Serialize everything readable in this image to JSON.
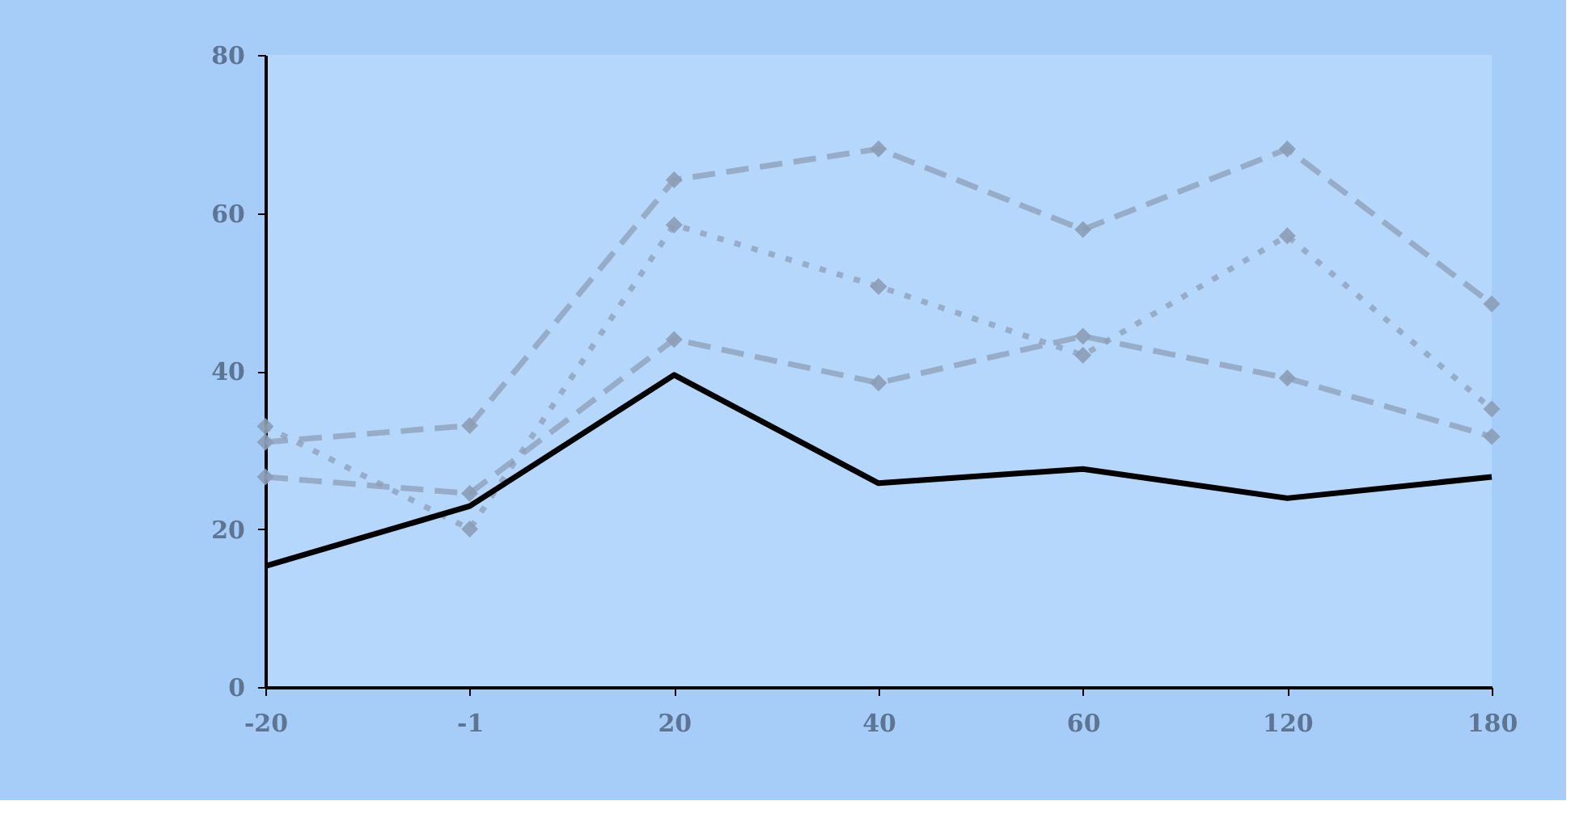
{
  "chart_data": {
    "type": "line",
    "categories": [
      "-20",
      "-1",
      "20",
      "40",
      "60",
      "120",
      "180"
    ],
    "ylim": [
      0,
      80
    ],
    "yticks": [
      0,
      20,
      40,
      60,
      80
    ],
    "grid": false,
    "series": [
      {
        "color": "#8c9db5",
        "line_style": "dashed",
        "marker": "diamond",
        "values": [
          31,
          33.1,
          64.2,
          68.1,
          57.9,
          68.1,
          48.5
        ]
      },
      {
        "color": "#8c9db5",
        "line_style": "dotted",
        "marker": "diamond",
        "values": [
          33,
          20,
          58.5,
          50.7,
          42,
          57.1,
          35.2
        ]
      },
      {
        "color": "#8c9db5",
        "line_style": "dashed",
        "marker": "diamond",
        "values": [
          26.6,
          24.5,
          44,
          38.5,
          44.4,
          39.1,
          31.7
        ]
      },
      {
        "color": "#000000",
        "line_style": "solid",
        "marker": "none",
        "values": [
          15.3,
          22.9,
          39.5,
          25.8,
          27.6,
          23.9,
          26.6
        ]
      }
    ]
  }
}
